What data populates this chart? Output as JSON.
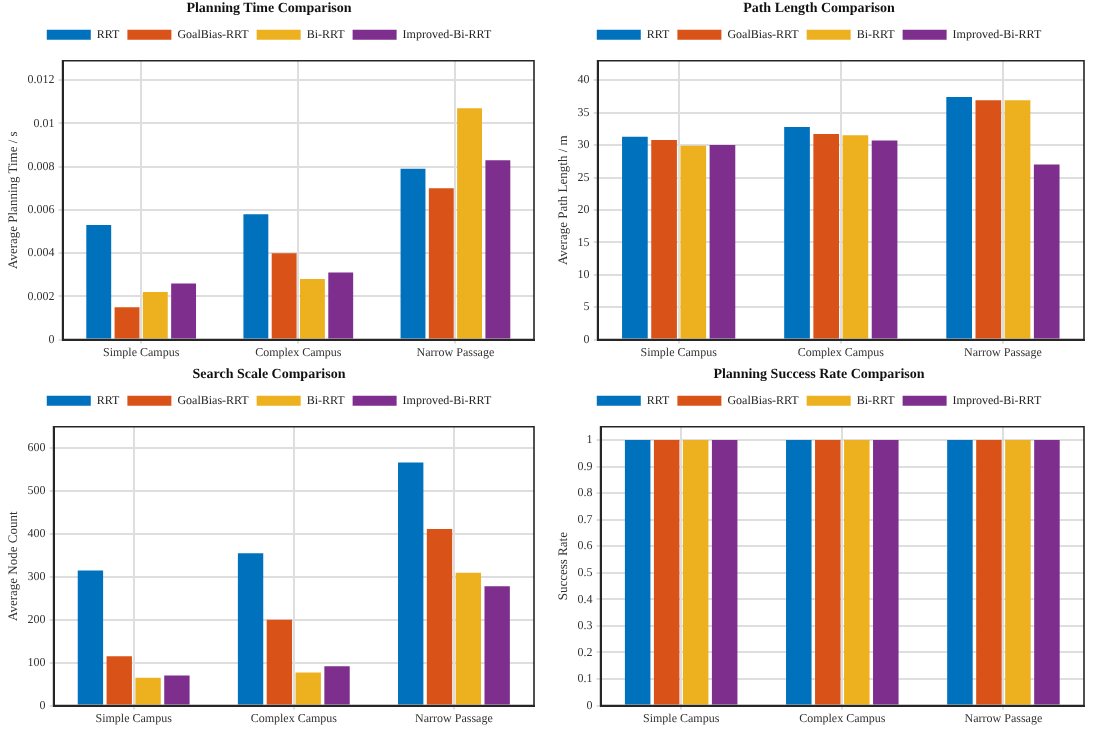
{
  "chart_data": [
    {
      "type": "bar",
      "title": "Planning Time Comparison",
      "ylabel": "Average Planning Time / s",
      "categories": [
        "Simple Campus",
        "Complex Campus",
        "Narrow Passage"
      ],
      "series": [
        {
          "name": "RRT",
          "color": "#0072bd",
          "values": [
            0.0053,
            0.0058,
            0.0079
          ]
        },
        {
          "name": "GoalBias-RRT",
          "color": "#d95319",
          "values": [
            0.0015,
            0.004,
            0.007
          ]
        },
        {
          "name": "Bi-RRT",
          "color": "#edb120",
          "values": [
            0.0022,
            0.0028,
            0.0107
          ]
        },
        {
          "name": "Improved-Bi-RRT",
          "color": "#7e2f8e",
          "values": [
            0.0026,
            0.0031,
            0.0083
          ]
        }
      ],
      "ylim": [
        0,
        0.0129
      ],
      "yticks": [
        0,
        0.002,
        0.004,
        0.006,
        0.008,
        0.01,
        0.012
      ],
      "grid": true,
      "legend": "top"
    },
    {
      "type": "bar",
      "title": "Path Length Comparison",
      "ylabel": "Average Path Length / m",
      "categories": [
        "Simple Campus",
        "Complex Campus",
        "Narrow Passage"
      ],
      "series": [
        {
          "name": "RRT",
          "color": "#0072bd",
          "values": [
            31.3,
            32.8,
            37.4
          ]
        },
        {
          "name": "GoalBias-RRT",
          "color": "#d95319",
          "values": [
            30.8,
            31.7,
            36.9
          ]
        },
        {
          "name": "Bi-RRT",
          "color": "#edb120",
          "values": [
            29.9,
            31.5,
            36.9
          ]
        },
        {
          "name": "Improved-Bi-RRT",
          "color": "#7e2f8e",
          "values": [
            30.0,
            30.7,
            27.0
          ]
        }
      ],
      "ylim": [
        0,
        43
      ],
      "yticks": [
        0,
        5,
        10,
        15,
        20,
        25,
        30,
        35,
        40
      ],
      "grid": true,
      "legend": "top"
    },
    {
      "type": "bar",
      "title": "Search Scale Comparison",
      "ylabel": "Average Node Count",
      "categories": [
        "Simple Campus",
        "Complex Campus",
        "Narrow Passage"
      ],
      "series": [
        {
          "name": "RRT",
          "color": "#0072bd",
          "values": [
            315,
            355,
            567
          ]
        },
        {
          "name": "GoalBias-RRT",
          "color": "#d95319",
          "values": [
            115,
            200,
            412
          ]
        },
        {
          "name": "Bi-RRT",
          "color": "#edb120",
          "values": [
            65,
            77,
            310
          ]
        },
        {
          "name": "Improved-Bi-RRT",
          "color": "#7e2f8e",
          "values": [
            70,
            92,
            278
          ]
        }
      ],
      "ylim": [
        0,
        650
      ],
      "yticks": [
        0,
        100,
        200,
        300,
        400,
        500,
        600
      ],
      "grid": true,
      "legend": "top"
    },
    {
      "type": "bar",
      "title": "Planning Success Rate Comparison",
      "ylabel": "Success Rate",
      "categories": [
        "Simple Campus",
        "Complex Campus",
        "Narrow Passage"
      ],
      "series": [
        {
          "name": "RRT",
          "color": "#0072bd",
          "values": [
            1,
            1,
            1
          ]
        },
        {
          "name": "GoalBias-RRT",
          "color": "#d95319",
          "values": [
            1,
            1,
            1
          ]
        },
        {
          "name": "Bi-RRT",
          "color": "#edb120",
          "values": [
            1,
            1,
            1
          ]
        },
        {
          "name": "Improved-Bi-RRT",
          "color": "#7e2f8e",
          "values": [
            1,
            1,
            1
          ]
        }
      ],
      "ylim": [
        0,
        1.05
      ],
      "yticks": [
        0,
        0.1,
        0.2,
        0.3,
        0.4,
        0.5,
        0.6,
        0.7,
        0.8,
        0.9,
        1
      ],
      "grid": true,
      "legend": "top"
    }
  ]
}
